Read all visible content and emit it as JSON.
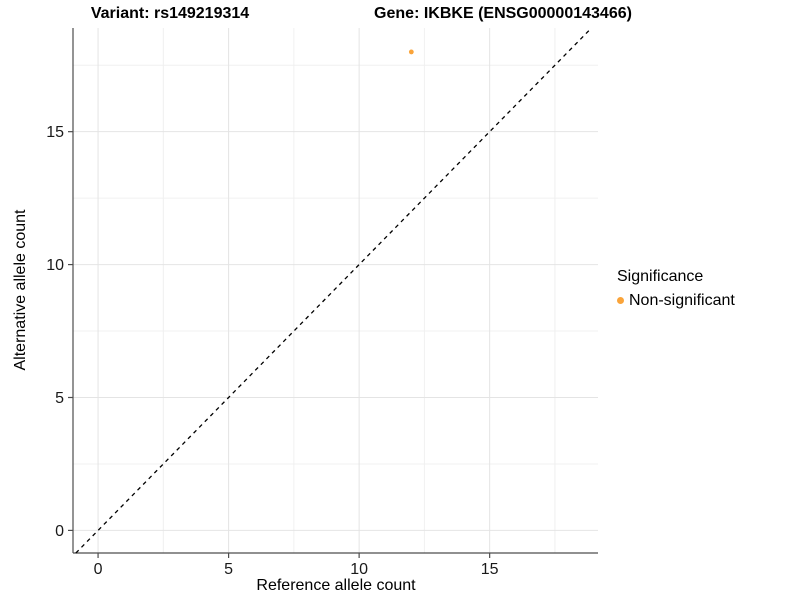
{
  "titles": {
    "variant": "Variant: rs149219314",
    "gene": "Gene: IKBKE (ENSG00000143466)"
  },
  "chart_data": {
    "type": "scatter",
    "title_left": "Variant: rs149219314",
    "title_right": "Gene: IKBKE (ENSG00000143466)",
    "xlabel": "Reference allele count",
    "ylabel": "Alternative allele count",
    "xlim": [
      -0.96,
      19.15
    ],
    "ylim": [
      -0.85,
      18.9
    ],
    "x_major_ticks": [
      0,
      5,
      10,
      15
    ],
    "y_major_ticks": [
      0,
      5,
      10,
      15
    ],
    "x_minor_ticks": [
      2.5,
      7.5,
      12.5,
      17.5
    ],
    "y_minor_ticks": [
      2.5,
      7.5,
      12.5,
      17.5
    ],
    "grid": true,
    "identity_line": {
      "equation": "y = x",
      "style": "dashed",
      "color": "#000000"
    },
    "series": [
      {
        "name": "Non-significant",
        "color": "#FAA43A",
        "points": [
          {
            "x": 12,
            "y": 18
          }
        ]
      }
    ],
    "legend": {
      "title": "Significance",
      "position": "right",
      "items": [
        {
          "label": "Non-significant",
          "color": "#FAA43A"
        }
      ]
    }
  },
  "colors": {
    "background": "#ffffff",
    "axis_line": "#4d4d4d",
    "tick_mark": "#4d4d4d",
    "tick_label": "#1a1a1a",
    "grid_major": "#e4e4e4",
    "grid_minor": "#f0f0f0",
    "point_orange": "#FAA43A",
    "identity_line": "#000000"
  }
}
